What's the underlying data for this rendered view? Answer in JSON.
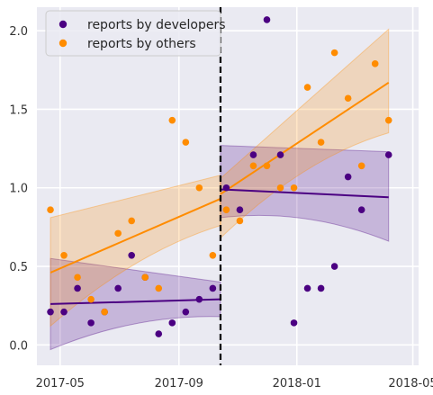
{
  "chart_data": {
    "type": "scatter",
    "title": "",
    "xlabel": "",
    "ylabel": "",
    "x_ticks": [
      "2017-05",
      "2017-09",
      "2018-01",
      "2018-05"
    ],
    "xlim": [
      "2017-04-07",
      "2018-05-07"
    ],
    "y_ticks": [
      "0.0",
      "0.5",
      "1.0",
      "1.5",
      "2.0"
    ],
    "ylim": [
      -0.13,
      2.15
    ],
    "grid": true,
    "legend_position": "top-left",
    "vline": {
      "x": "2017-10-14",
      "style": "dashed",
      "color": "#000000"
    },
    "series": [
      {
        "name": "reports by developers",
        "color": "#4B0082",
        "points": [
          {
            "x": "2017-04-21",
            "y": 0.21
          },
          {
            "x": "2017-05-05",
            "y": 0.21
          },
          {
            "x": "2017-05-19",
            "y": 0.36
          },
          {
            "x": "2017-06-02",
            "y": 0.14
          },
          {
            "x": "2017-06-16",
            "y": 0.21
          },
          {
            "x": "2017-06-30",
            "y": 0.36
          },
          {
            "x": "2017-07-14",
            "y": 0.57
          },
          {
            "x": "2017-07-28",
            "y": 0.43
          },
          {
            "x": "2017-08-11",
            "y": 0.07
          },
          {
            "x": "2017-08-25",
            "y": 0.14
          },
          {
            "x": "2017-09-08",
            "y": 0.21
          },
          {
            "x": "2017-09-22",
            "y": 0.29
          },
          {
            "x": "2017-10-06",
            "y": 0.36
          },
          {
            "x": "2017-10-20",
            "y": 1.0
          },
          {
            "x": "2017-11-03",
            "y": 0.86
          },
          {
            "x": "2017-11-17",
            "y": 1.21
          },
          {
            "x": "2017-12-01",
            "y": 2.07
          },
          {
            "x": "2017-12-15",
            "y": 1.21
          },
          {
            "x": "2017-12-29",
            "y": 0.14
          },
          {
            "x": "2018-01-12",
            "y": 0.36
          },
          {
            "x": "2018-01-26",
            "y": 0.36
          },
          {
            "x": "2018-02-09",
            "y": 0.5
          },
          {
            "x": "2018-02-23",
            "y": 1.07
          },
          {
            "x": "2018-03-09",
            "y": 0.86
          },
          {
            "x": "2018-04-06",
            "y": 1.21
          }
        ],
        "fits": [
          {
            "x": [
              "2017-04-21",
              "2017-10-14"
            ],
            "y": [
              0.26,
              0.29
            ],
            "band_upper": [
              0.55,
              0.4
            ],
            "band_lower": [
              -0.03,
              0.18
            ]
          },
          {
            "x": [
              "2017-10-14",
              "2018-04-06"
            ],
            "y": [
              0.99,
              0.94
            ],
            "band_upper": [
              1.27,
              1.23
            ],
            "band_lower": [
              0.81,
              0.66
            ]
          }
        ]
      },
      {
        "name": "reports by others",
        "color": "#FF8C00",
        "points": [
          {
            "x": "2017-04-21",
            "y": 0.86
          },
          {
            "x": "2017-05-05",
            "y": 0.57
          },
          {
            "x": "2017-05-19",
            "y": 0.43
          },
          {
            "x": "2017-06-02",
            "y": 0.29
          },
          {
            "x": "2017-06-16",
            "y": 0.21
          },
          {
            "x": "2017-06-30",
            "y": 0.71
          },
          {
            "x": "2017-07-14",
            "y": 0.79
          },
          {
            "x": "2017-07-28",
            "y": 0.43
          },
          {
            "x": "2017-08-11",
            "y": 0.36
          },
          {
            "x": "2017-08-25",
            "y": 1.43
          },
          {
            "x": "2017-09-08",
            "y": 1.29
          },
          {
            "x": "2017-09-22",
            "y": 1.0
          },
          {
            "x": "2017-10-06",
            "y": 0.57
          },
          {
            "x": "2017-10-20",
            "y": 0.86
          },
          {
            "x": "2017-11-03",
            "y": 0.79
          },
          {
            "x": "2017-11-17",
            "y": 1.14
          },
          {
            "x": "2017-12-01",
            "y": 1.14
          },
          {
            "x": "2017-12-15",
            "y": 1.0
          },
          {
            "x": "2017-12-29",
            "y": 1.0
          },
          {
            "x": "2018-01-12",
            "y": 1.64
          },
          {
            "x": "2018-01-26",
            "y": 1.29
          },
          {
            "x": "2018-02-09",
            "y": 1.86
          },
          {
            "x": "2018-02-23",
            "y": 1.57
          },
          {
            "x": "2018-03-09",
            "y": 1.14
          },
          {
            "x": "2018-03-23",
            "y": 1.79
          },
          {
            "x": "2018-04-06",
            "y": 1.43
          }
        ],
        "fits": [
          {
            "x": [
              "2017-04-21",
              "2017-10-14"
            ],
            "y": [
              0.46,
              0.93
            ],
            "band_upper": [
              0.81,
              1.08
            ],
            "band_lower": [
              0.12,
              0.76
            ]
          },
          {
            "x": [
              "2017-10-14",
              "2018-04-06"
            ],
            "y": [
              0.96,
              1.67
            ],
            "band_upper": [
              1.06,
              2.01
            ],
            "band_lower": [
              0.68,
              1.35
            ]
          }
        ]
      }
    ]
  }
}
